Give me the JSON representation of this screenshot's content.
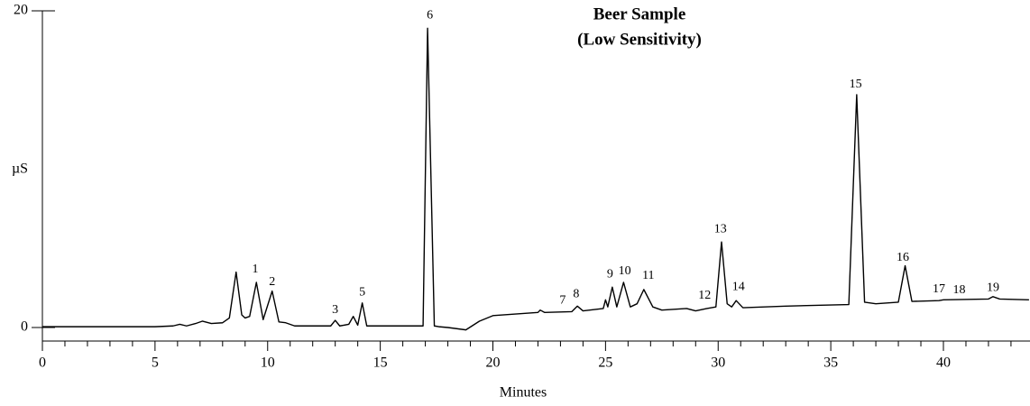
{
  "chart_data": {
    "type": "line",
    "title": [
      "Beer Sample",
      "(Low Sensitivity)"
    ],
    "x_label": "Minutes",
    "y_label": "µS",
    "color": "#000000",
    "xlim": [
      0,
      43.8
    ],
    "ylim": [
      0,
      20
    ],
    "xticks": [
      0,
      5,
      10,
      15,
      20,
      25,
      30,
      35,
      40
    ],
    "xminorticks": [
      1,
      2,
      3,
      4,
      6,
      7,
      8,
      9,
      11,
      12,
      13,
      14,
      16,
      17,
      18,
      19,
      21,
      22,
      23,
      24,
      26,
      27,
      28,
      29,
      31,
      32,
      33,
      34,
      36,
      37,
      38,
      39,
      41,
      42,
      43
    ],
    "yticks": [
      0,
      20
    ],
    "x": [
      0,
      5,
      5.8,
      6.1,
      6.4,
      6.8,
      7.1,
      7.5,
      8,
      8.3,
      8.6,
      8.85,
      9.0,
      9.2,
      9.5,
      9.8,
      10.2,
      10.5,
      10.8,
      11.2,
      12.8,
      13.0,
      13.2,
      13.6,
      13.8,
      14.0,
      14.2,
      14.4,
      16.9,
      17.1,
      17.4,
      17.6,
      18.0,
      18.8,
      19.4,
      20,
      22,
      22.1,
      22.3,
      23.5,
      23.75,
      24,
      24.9,
      25.0,
      25.1,
      25.3,
      25.5,
      25.8,
      26.1,
      26.4,
      26.7,
      27.1,
      27.5,
      28.6,
      29,
      29.5,
      29.9,
      30.15,
      30.4,
      30.6,
      30.8,
      31.1,
      33,
      35.8,
      36.15,
      36.5,
      37,
      38,
      38.3,
      38.6,
      39.8,
      40,
      42,
      42.2,
      42.5,
      43.8
    ],
    "values": [
      0.05,
      0.05,
      0.1,
      0.2,
      0.1,
      0.25,
      0.4,
      0.25,
      0.3,
      0.6,
      3.5,
      0.8,
      0.6,
      0.7,
      2.85,
      0.5,
      2.3,
      0.35,
      0.3,
      0.1,
      0.1,
      0.45,
      0.1,
      0.2,
      0.7,
      0.15,
      1.55,
      0.1,
      0.1,
      18.9,
      0.1,
      0.05,
      0.0,
      -0.15,
      0.4,
      0.75,
      0.95,
      1.1,
      0.95,
      1.0,
      1.35,
      1.05,
      1.2,
      1.75,
      1.3,
      2.55,
      1.3,
      2.85,
      1.3,
      1.5,
      2.4,
      1.3,
      1.1,
      1.2,
      1.05,
      1.2,
      1.3,
      5.4,
      1.5,
      1.3,
      1.7,
      1.25,
      1.35,
      1.45,
      14.7,
      1.6,
      1.5,
      1.6,
      3.9,
      1.65,
      1.7,
      1.75,
      1.8,
      1.95,
      1.8,
      1.75
    ],
    "annotations": [
      {
        "text": "1",
        "x": 9.45,
        "y": 3.65
      },
      {
        "text": "2",
        "x": 10.2,
        "y": 2.85
      },
      {
        "text": "3",
        "x": 13.0,
        "y": 1.1
      },
      {
        "text": "5",
        "x": 14.2,
        "y": 2.2
      },
      {
        "text": "6",
        "x": 17.2,
        "y": 19.7
      },
      {
        "text": "7",
        "x": 23.1,
        "y": 1.7
      },
      {
        "text": "8",
        "x": 23.7,
        "y": 2.1
      },
      {
        "text": "9",
        "x": 25.2,
        "y": 3.35
      },
      {
        "text": "10",
        "x": 25.85,
        "y": 3.55
      },
      {
        "text": "11",
        "x": 26.9,
        "y": 3.25
      },
      {
        "text": "12",
        "x": 29.4,
        "y": 2.0
      },
      {
        "text": "13",
        "x": 30.1,
        "y": 6.2
      },
      {
        "text": "14",
        "x": 30.9,
        "y": 2.55
      },
      {
        "text": "15",
        "x": 36.1,
        "y": 15.35
      },
      {
        "text": "16",
        "x": 38.2,
        "y": 4.4
      },
      {
        "text": "17",
        "x": 39.8,
        "y": 2.4
      },
      {
        "text": "18",
        "x": 40.7,
        "y": 2.35
      },
      {
        "text": "19",
        "x": 42.2,
        "y": 2.5
      }
    ]
  }
}
